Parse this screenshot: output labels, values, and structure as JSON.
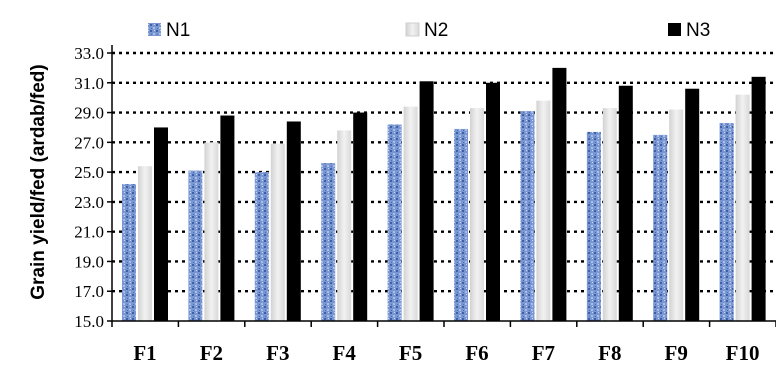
{
  "chart_data": {
    "type": "bar",
    "title": "",
    "xlabel": "",
    "ylabel": "Grain yield/fed (ardab/fed)",
    "ylim": [
      15.0,
      33.0
    ],
    "yticks": [
      "15.0",
      "17.0",
      "19.0",
      "21.0",
      "23.0",
      "25.0",
      "27.0",
      "29.0",
      "31.0",
      "33.0"
    ],
    "grid": true,
    "legend_position": "top",
    "categories": [
      "F1",
      "F2",
      "F3",
      "F4",
      "F5",
      "F6",
      "F7",
      "F8",
      "F9",
      "F10"
    ],
    "series": [
      {
        "name": "N1",
        "color": "#6f8fd0",
        "values": [
          24.2,
          25.1,
          25.0,
          25.6,
          28.2,
          27.9,
          29.1,
          27.7,
          27.5,
          28.3
        ]
      },
      {
        "name": "N2",
        "color": "#e0e0e0",
        "values": [
          25.4,
          27.0,
          26.9,
          27.8,
          29.4,
          29.3,
          29.8,
          29.3,
          29.2,
          30.2
        ]
      },
      {
        "name": "N3",
        "color": "#000000",
        "values": [
          28.0,
          28.8,
          28.4,
          29.0,
          31.1,
          31.0,
          32.0,
          30.8,
          30.6,
          31.4
        ]
      }
    ]
  }
}
